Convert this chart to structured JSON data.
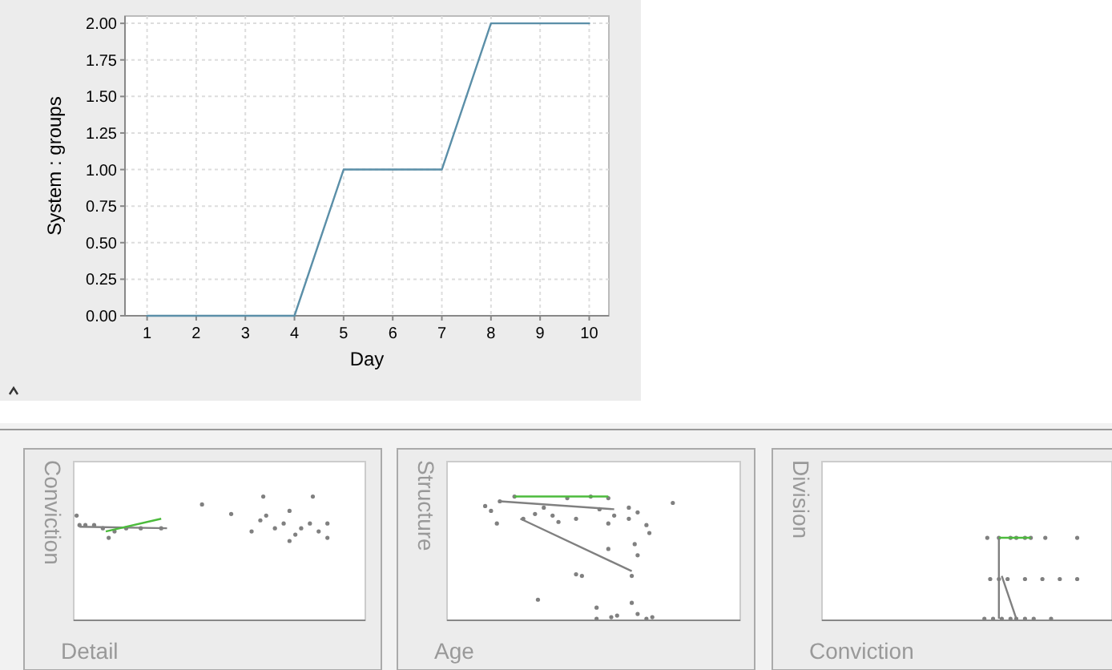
{
  "chart_data": [
    {
      "type": "line",
      "xlabel": "Day",
      "ylabel": "System : groups",
      "x": [
        1,
        2,
        3,
        4,
        5,
        6,
        7,
        8,
        9,
        10
      ],
      "series": [
        {
          "color": "#5b8fa8",
          "values": [
            0,
            0,
            0,
            0,
            1,
            1,
            1,
            2,
            2,
            2
          ]
        }
      ],
      "xlim": [
        0.55,
        10.4
      ],
      "xticks": [
        1,
        2,
        3,
        4,
        5,
        6,
        7,
        8,
        9,
        10
      ],
      "ylim": [
        0,
        2.05
      ],
      "yticks": [
        {
          "value": 0,
          "label": "0.00"
        },
        {
          "value": 0.25,
          "label": "0.25"
        },
        {
          "value": 0.5,
          "label": "0.50"
        },
        {
          "value": 0.75,
          "label": "0.75"
        },
        {
          "value": 1,
          "label": "1.00"
        },
        {
          "value": 1.25,
          "label": "1.25"
        },
        {
          "value": 1.5,
          "label": "1.50"
        },
        {
          "value": 1.75,
          "label": "1.75"
        },
        {
          "value": 2,
          "label": "2.00"
        }
      ],
      "grid": true,
      "marker": "none",
      "line_style": "solid"
    },
    {
      "type": "other",
      "xlabel": "Detail",
      "ylabel": "Conviction"
    },
    {
      "type": "other",
      "xlabel": "Age",
      "ylabel": "Structure"
    },
    {
      "type": "other",
      "xlabel": "Conviction",
      "ylabel": "Division"
    }
  ]
}
